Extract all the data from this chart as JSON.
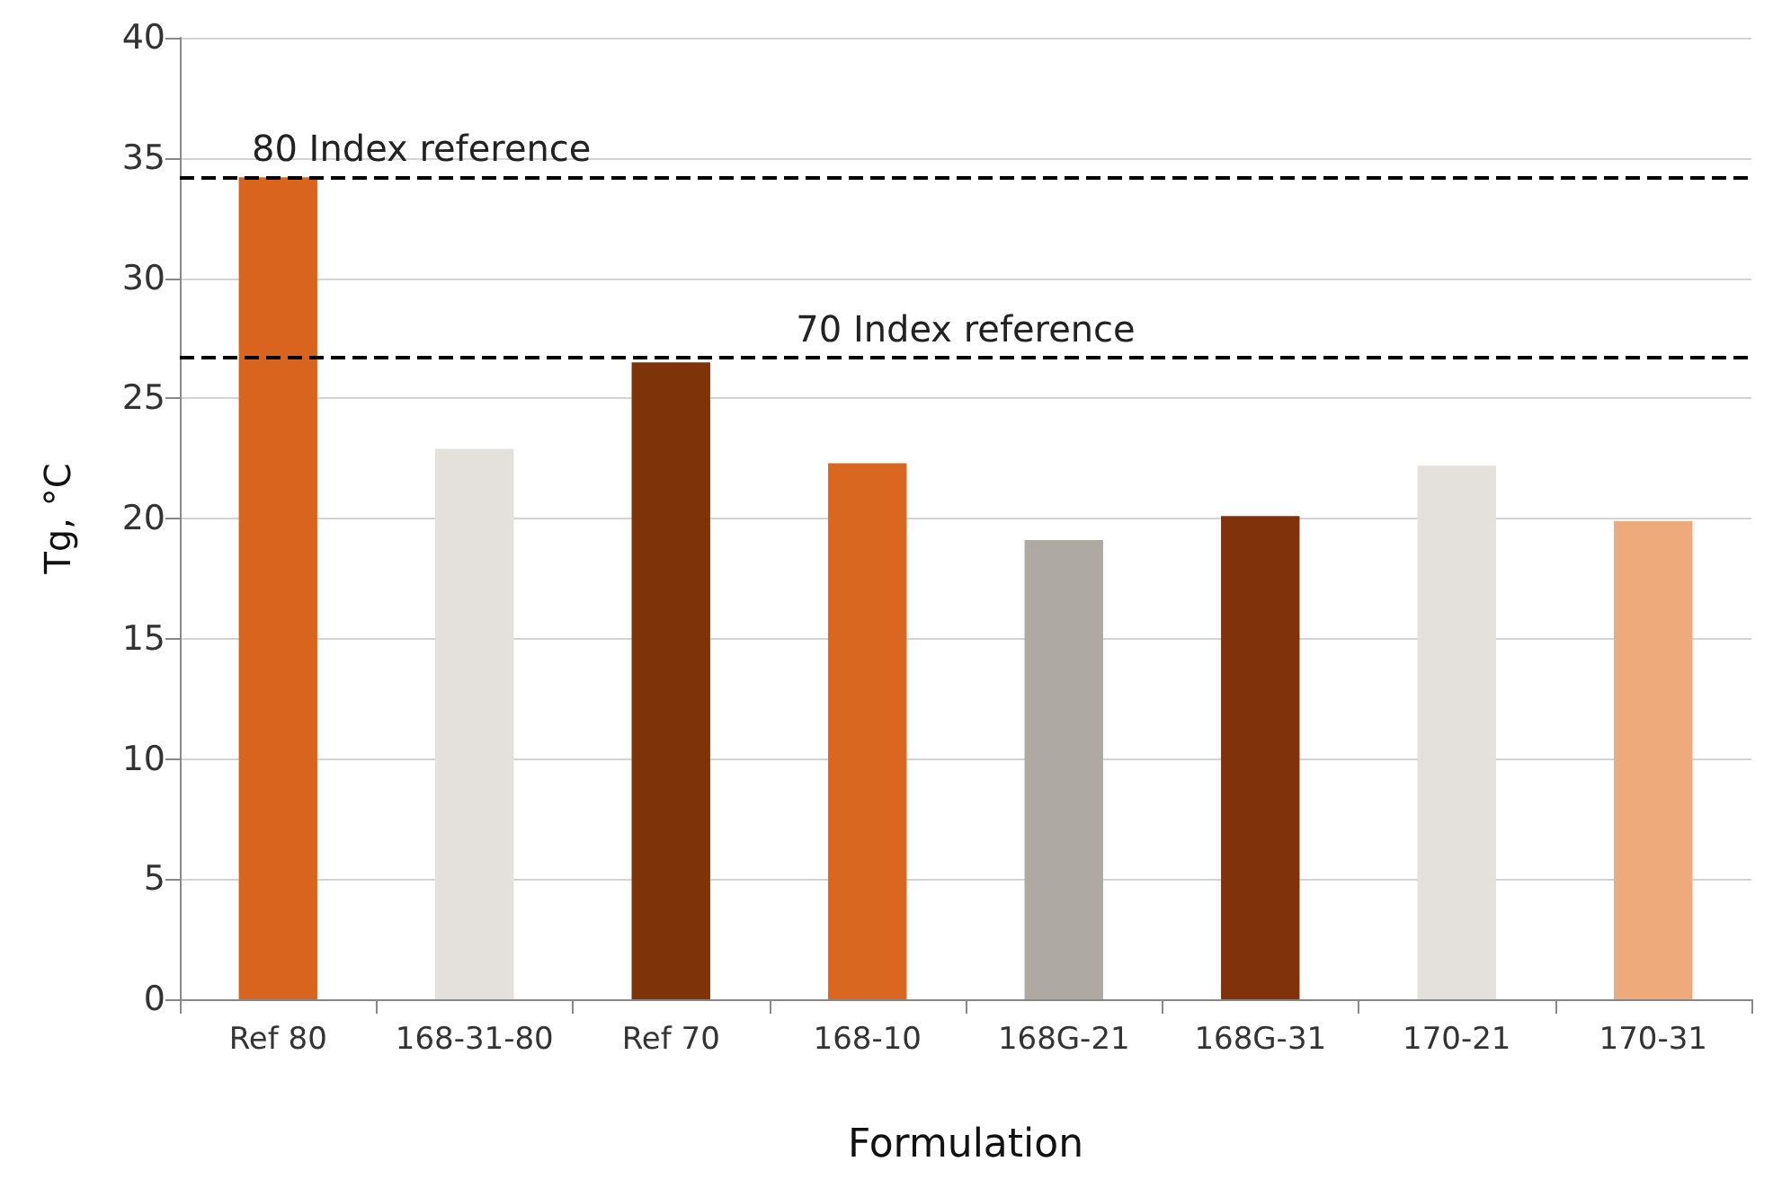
{
  "chart_data": {
    "type": "bar",
    "xlabel": "Formulation",
    "ylabel": "Tg, °C",
    "categories": [
      "Ref 80",
      "168-31-80",
      "Ref 70",
      "168-10",
      "168G-21",
      "168G-31",
      "170-21",
      "170-31"
    ],
    "values": [
      34.2,
      22.9,
      26.5,
      22.3,
      19.1,
      20.1,
      22.2,
      19.9
    ],
    "colors": [
      "#d9641e",
      "#e4e0db",
      "#7f3309",
      "#d9671f",
      "#aea9a1",
      "#80330b",
      "#e4e0db",
      "#eeaa7b"
    ],
    "ylim": [
      0,
      40
    ],
    "yticks": [
      0,
      5,
      10,
      15,
      20,
      25,
      30,
      35,
      40
    ],
    "grid": "y",
    "ref_lines": [
      {
        "axis": "y",
        "value": 34.2,
        "label": "80 Index reference",
        "color": "#000000",
        "line_style": "dashed"
      },
      {
        "axis": "y",
        "value": 26.7,
        "label": "70 Index reference",
        "color": "#000000",
        "line_style": "dashed"
      }
    ]
  }
}
